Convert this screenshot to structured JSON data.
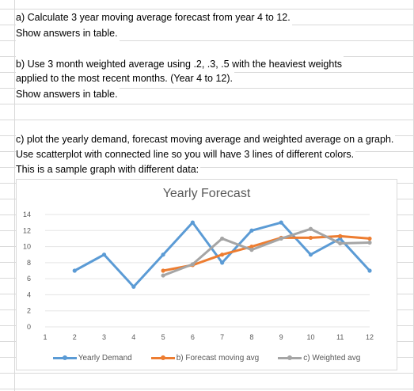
{
  "instructions": {
    "a_line1": "a) Calculate 3 year moving average forecast from year 4 to 12.",
    "a_line2": "Show answers in table.",
    "b_line1": "b) Use 3 month weighted average using .2, .3, .5 with the heaviest weights",
    "b_line2": "applied to the most recent months. (Year 4 to 12).",
    "b_line3": "Show answers in table.",
    "c_line1": "c) plot the yearly demand, forecast moving average and weighted average on a graph.",
    "c_line2": "Use scatterplot with connected line so you will have 3 lines of different colors.",
    "c_line3": "This is a sample graph with different data:"
  },
  "chart_data": {
    "type": "line",
    "title": "Yearly Forecast",
    "xlabel": "",
    "ylabel": "",
    "xlim": [
      1,
      12
    ],
    "ylim": [
      0,
      14
    ],
    "x_ticks": [
      "1",
      "2",
      "3",
      "4",
      "5",
      "6",
      "7",
      "8",
      "9",
      "10",
      "11",
      "12"
    ],
    "y_ticks": [
      "0",
      "2",
      "4",
      "6",
      "8",
      "10",
      "12",
      "14"
    ],
    "grid": true,
    "legend_position": "bottom",
    "series": [
      {
        "name": "Yearly Demand",
        "color": "#5b9bd5",
        "points": [
          [
            2,
            7
          ],
          [
            3,
            9
          ],
          [
            4,
            5
          ],
          [
            5,
            9
          ],
          [
            6,
            13
          ],
          [
            7,
            8
          ],
          [
            8,
            12
          ],
          [
            9,
            13
          ],
          [
            10,
            9
          ],
          [
            11,
            11
          ],
          [
            12,
            7
          ]
        ]
      },
      {
        "name": "b) Forecast moving avg",
        "color": "#ed7d31",
        "points": [
          [
            5,
            7
          ],
          [
            6,
            7.7
          ],
          [
            7,
            9
          ],
          [
            8,
            10
          ],
          [
            9,
            11.1
          ],
          [
            10,
            11.1
          ],
          [
            11,
            11.3
          ],
          [
            12,
            11
          ]
        ]
      },
      {
        "name": "c) Weighted avg",
        "color": "#a5a5a5",
        "points": [
          [
            5,
            6.4
          ],
          [
            6,
            7.8
          ],
          [
            7,
            11
          ],
          [
            8,
            9.6
          ],
          [
            9,
            11
          ],
          [
            10,
            12.2
          ],
          [
            11,
            10.4
          ],
          [
            12,
            10.5
          ]
        ]
      }
    ]
  }
}
